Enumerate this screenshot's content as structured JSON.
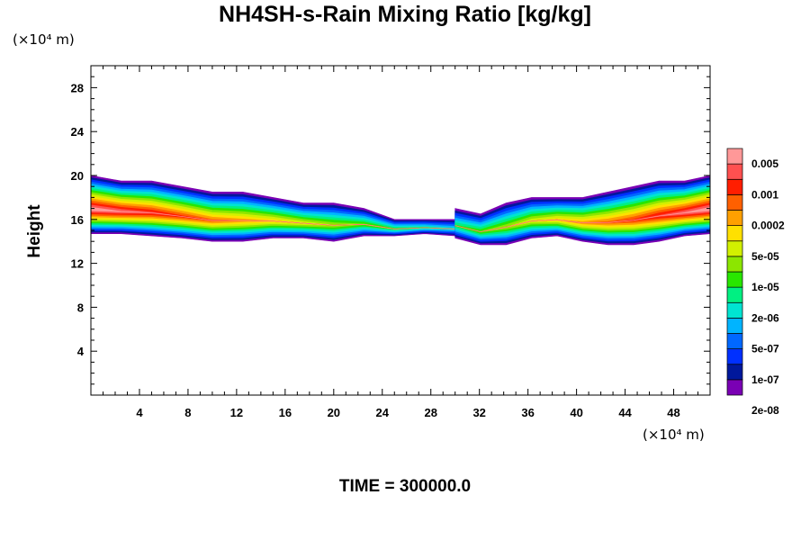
{
  "chart_data": {
    "type": "heatmap",
    "title": "NH4SH-s-Rain Mixing Ratio [kg/kg]",
    "xlabel": "",
    "ylabel": "Height",
    "x_unit": "(×10⁴ m)",
    "y_unit": "(×10⁴ m)",
    "xlim": [
      0,
      51
    ],
    "ylim": [
      0,
      30
    ],
    "x_ticks": [
      "4",
      "8",
      "12",
      "16",
      "20",
      "24",
      "28",
      "32",
      "36",
      "40",
      "44",
      "48"
    ],
    "y_ticks": [
      "4",
      "8",
      "12",
      "16",
      "20",
      "24",
      "28"
    ],
    "grid": false,
    "colorbar": {
      "position": "right",
      "labels": [
        "0.005",
        "0.001",
        "0.0002",
        "5e-05",
        "1e-05",
        "2e-06",
        "5e-07",
        "1e-07",
        "2e-08"
      ],
      "colors": [
        "#7a00b4",
        "#00189c",
        "#0030ff",
        "#0068ff",
        "#00b4ff",
        "#00e4d2",
        "#00f082",
        "#28e600",
        "#8ce600",
        "#d2f000",
        "#ffe000",
        "#ffa000",
        "#ff6000",
        "#ff1e00",
        "#ff5050",
        "#ff9898"
      ]
    },
    "regions": [
      {
        "name": "left band",
        "x_range": [
          0,
          30
        ],
        "top": [
          20,
          19.5,
          19.5,
          19,
          18.5,
          18.5,
          18,
          17.5,
          17.5,
          17,
          16,
          16,
          16
        ],
        "base": [
          14.7,
          14.7,
          14.5,
          14.3,
          14.0,
          14.0,
          14.3,
          14.3,
          14.0,
          14.5,
          14.5,
          14.7,
          14.5
        ]
      },
      {
        "name": "right band",
        "x_range": [
          30,
          51
        ],
        "top": [
          17,
          16.5,
          17.5,
          18,
          18,
          18,
          18.5,
          19,
          19.5,
          19.5,
          20
        ],
        "base": [
          14.3,
          13.7,
          13.7,
          14.3,
          14.5,
          14.0,
          13.7,
          13.7,
          14.0,
          14.5,
          14.7
        ]
      }
    ]
  },
  "footer": "TIME = 300000.0"
}
